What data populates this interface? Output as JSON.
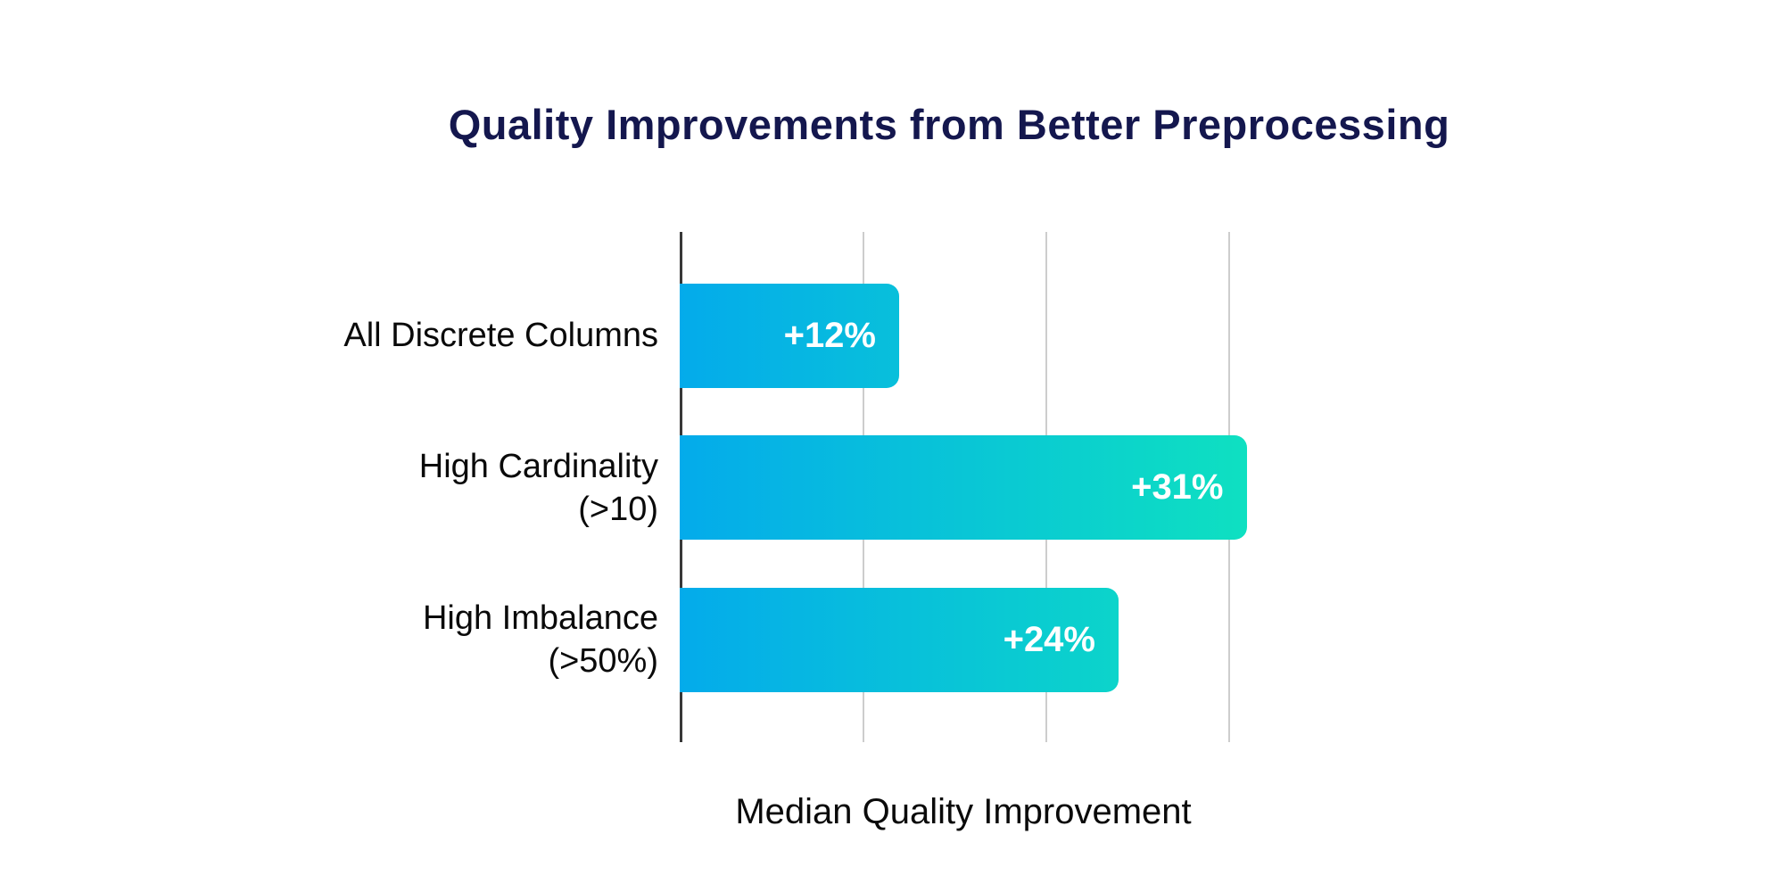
{
  "colors": {
    "background": "#ffffff",
    "title": "#14174e",
    "bar_gradient_start": "#04abeb",
    "bar_gradient_end": "#0ee0c1",
    "gridline": "#cdcdcd",
    "axis_line": "#383838",
    "label_text": "#0a0a0a",
    "value_text": "#ffffff"
  },
  "chart_data": {
    "type": "bar",
    "orientation": "horizontal",
    "title": "Quality Improvements from Better Preprocessing",
    "xlabel": "Median Quality Improvement",
    "categories": [
      "All Discrete Columns",
      "High Cardinality\n(>10)",
      "High Imbalance\n(>50%)"
    ],
    "values": [
      12,
      31,
      24
    ],
    "value_labels": [
      "+12%",
      "+31%",
      "+24%"
    ],
    "unit": "percent",
    "xlim": [
      0,
      31
    ],
    "gridline_values": [
      10,
      20,
      30
    ],
    "xtick_labels_visible": false,
    "grid": true,
    "legend": false
  }
}
